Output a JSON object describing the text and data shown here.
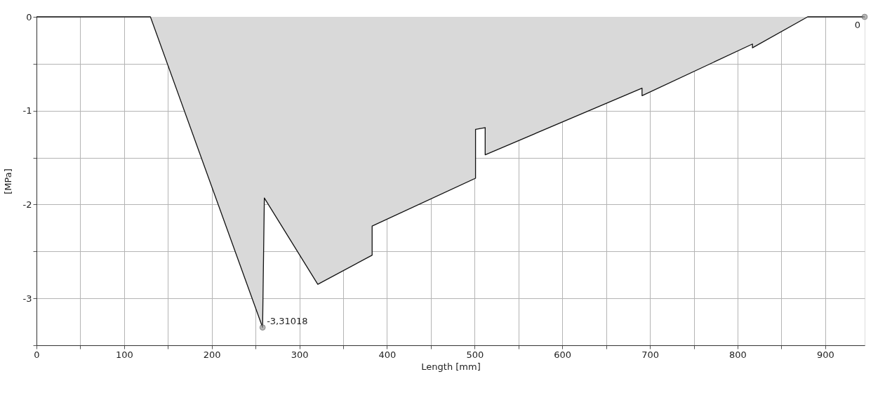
{
  "chart_data": {
    "type": "area",
    "xlabel": "Length [mm]",
    "ylabel": "[MPa]",
    "x": [
      0,
      130,
      258,
      260,
      321,
      383,
      383,
      501,
      501,
      512,
      512,
      691,
      691,
      817,
      817,
      880,
      945
    ],
    "series": [
      {
        "color": "#d9d9d9",
        "values": [
          0,
          0,
          -3.31,
          -1.93,
          -2.85,
          -2.54,
          -2.23,
          -1.72,
          -1.2,
          -1.18,
          -1.47,
          -0.76,
          -0.84,
          -0.29,
          -0.33,
          0,
          0
        ]
      }
    ],
    "xlim": [
      0,
      945
    ],
    "ylim": [
      -3.5,
      0
    ],
    "xticks": [
      0,
      {
        "value": 50,
        "label": null
      },
      100,
      {
        "value": 150,
        "label": null
      },
      200,
      {
        "value": 250,
        "label": null
      },
      300,
      {
        "value": 350,
        "label": null
      },
      400,
      {
        "value": 450,
        "label": null
      },
      500,
      {
        "value": 550,
        "label": null
      },
      600,
      {
        "value": 650,
        "label": null
      },
      700,
      {
        "value": 750,
        "label": null
      },
      800,
      {
        "value": 850,
        "label": null
      },
      900
    ],
    "yticks": [
      {
        "value": -3.5,
        "label": null
      },
      -3,
      {
        "value": -2.5,
        "label": null
      },
      -2,
      {
        "value": -1.5,
        "label": null
      },
      -1,
      {
        "value": -0.5,
        "label": null
      },
      0
    ],
    "annotations": [
      {
        "text": "-3,31018",
        "x": 258,
        "y": -3.31018
      },
      {
        "text": "0",
        "x": 945,
        "y": 0
      }
    ],
    "grid": true,
    "marker": "none",
    "line_style": "solid"
  }
}
